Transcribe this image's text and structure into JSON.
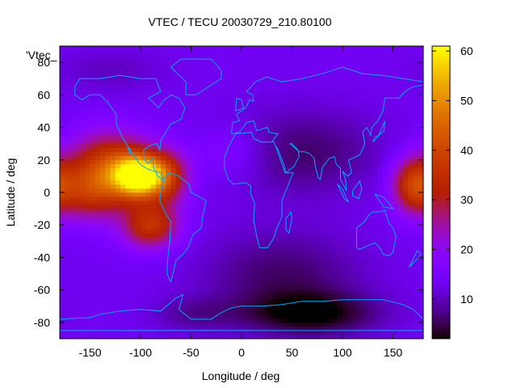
{
  "chart_data": {
    "type": "heatmap",
    "title": "VTEC / TECU 20030729_210.80100",
    "xlabel": "Longitude / deg",
    "ylabel": "Latitude / deg",
    "key_label": "'Vtec_",
    "xlim": [
      -180,
      180
    ],
    "ylim": [
      -90,
      90
    ],
    "x_ticks": [
      -150,
      -100,
      -50,
      0,
      50,
      100,
      150
    ],
    "y_ticks": [
      -80,
      -60,
      -40,
      -20,
      0,
      20,
      40,
      60,
      80
    ],
    "colorbar_range": [
      2,
      61
    ],
    "colorbar_ticks": [
      10,
      20,
      30,
      40,
      50,
      60
    ],
    "palette": "black-purple-red-orange-yellow",
    "cell_size_deg": [
      5,
      2.5
    ],
    "background_level": 14,
    "features": [
      {
        "lon": -100,
        "lat": 10,
        "amp": 47,
        "sx": 18,
        "sy": 9
      },
      {
        "lon": -130,
        "lat": 18,
        "amp": 22,
        "sx": 30,
        "sy": 14
      },
      {
        "lon": -150,
        "lat": 0,
        "amp": 18,
        "sx": 25,
        "sy": 12
      },
      {
        "lon": -90,
        "lat": -20,
        "amp": 22,
        "sx": 20,
        "sy": 10
      },
      {
        "lon": -70,
        "lat": 10,
        "amp": 14,
        "sx": 15,
        "sy": 12
      },
      {
        "lon": 170,
        "lat": 5,
        "amp": 22,
        "sx": 15,
        "sy": 12
      },
      {
        "lon": -10,
        "lat": 25,
        "amp": 6,
        "sx": 25,
        "sy": 12
      },
      {
        "lon": 60,
        "lat": 25,
        "amp": -8,
        "sx": 60,
        "sy": 20
      },
      {
        "lon": 40,
        "lat": -50,
        "amp": -8,
        "sx": 60,
        "sy": 20
      },
      {
        "lon": 70,
        "lat": -75,
        "amp": -11,
        "sx": 50,
        "sy": 10
      },
      {
        "lon": -50,
        "lat": -75,
        "amp": -5,
        "sx": 30,
        "sy": 8
      },
      {
        "lon": -130,
        "lat": 75,
        "amp": -4,
        "sx": 40,
        "sy": 10
      }
    ]
  }
}
